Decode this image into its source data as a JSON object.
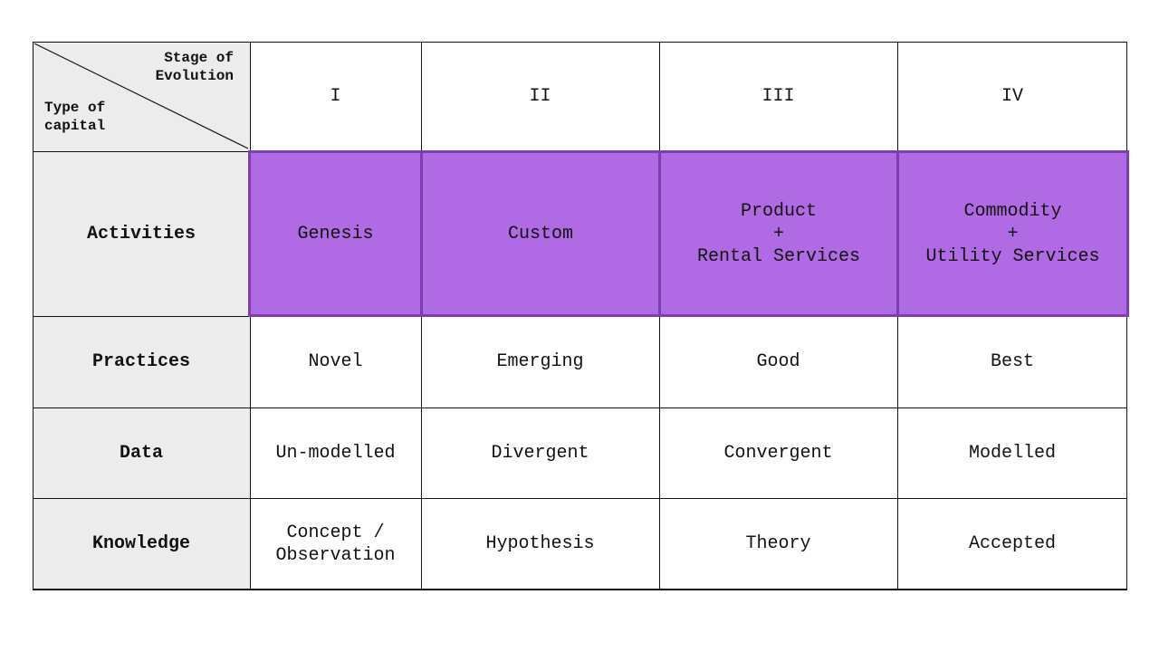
{
  "corner": {
    "stage_label": "Stage of\nEvolution",
    "type_label": "Type of\ncapital"
  },
  "stages": [
    "I",
    "II",
    "III",
    "IV"
  ],
  "rows": [
    {
      "label": "Activities",
      "cells": [
        "Genesis",
        "Custom",
        "Product\n+\nRental Services",
        "Commodity\n+\nUtility Services"
      ],
      "highlight": true
    },
    {
      "label": "Practices",
      "cells": [
        "Novel",
        "Emerging",
        "Good",
        "Best"
      ],
      "highlight": false
    },
    {
      "label": "Data",
      "cells": [
        "Un-modelled",
        "Divergent",
        "Convergent",
        "Modelled"
      ],
      "highlight": false
    },
    {
      "label": "Knowledge",
      "cells": [
        "Concept /\nObservation",
        "Hypothesis",
        "Theory",
        "Accepted"
      ],
      "highlight": false
    }
  ],
  "colors": {
    "highlight_fill": "#b06be4",
    "highlight_border": "#7b3fb0",
    "header_fill": "#ececec"
  }
}
